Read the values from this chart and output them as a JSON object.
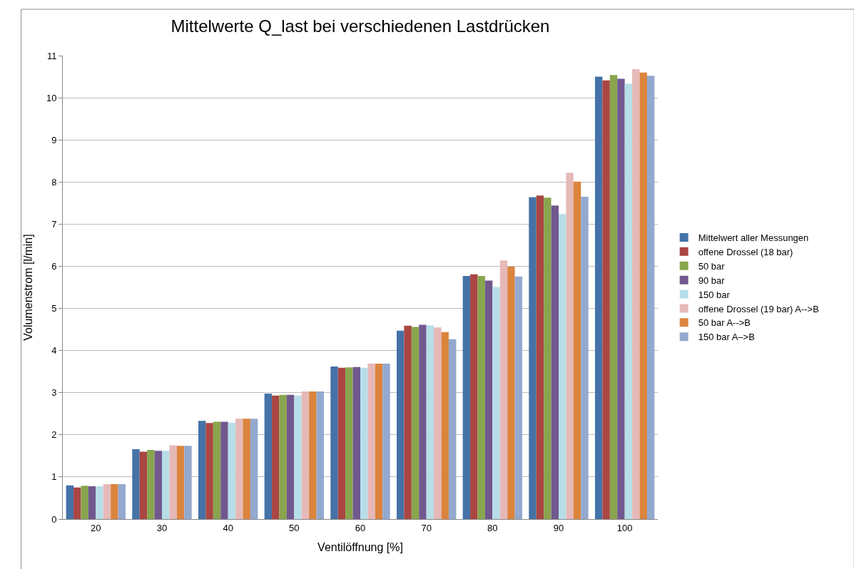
{
  "chart_data": {
    "type": "bar",
    "title": "Mittelwerte Q_last bei verschiedenen Lastdrücken",
    "xlabel": "Ventilöffnung [%]",
    "ylabel": "Volumenstrom [l/min]",
    "categories": [
      "20",
      "30",
      "40",
      "50",
      "60",
      "70",
      "80",
      "90",
      "100"
    ],
    "series": [
      {
        "name": "Mittelwert aller Messungen",
        "color": "#4572a7",
        "values": [
          0.8,
          1.66,
          2.33,
          2.98,
          3.62,
          4.47,
          5.77,
          7.64,
          10.5
        ]
      },
      {
        "name": "offene Drossel (18 bar)",
        "color": "#aa4643",
        "values": [
          0.75,
          1.6,
          2.28,
          2.93,
          3.59,
          4.59,
          5.81,
          7.68,
          10.41
        ]
      },
      {
        "name": "50 bar",
        "color": "#89a54e",
        "values": [
          0.79,
          1.64,
          2.31,
          2.95,
          3.6,
          4.56,
          5.77,
          7.63,
          10.54
        ]
      },
      {
        "name": "90 bar",
        "color": "#71588f",
        "values": [
          0.78,
          1.62,
          2.31,
          2.95,
          3.61,
          4.61,
          5.66,
          7.44,
          10.45
        ]
      },
      {
        "name": "150 bar",
        "color": "#b7dee8",
        "values": [
          0.78,
          1.62,
          2.29,
          2.93,
          3.59,
          4.6,
          5.51,
          7.24,
          10.33
        ]
      },
      {
        "name": "offene Drossel (19 bar) A-->B",
        "color": "#e6b9b8",
        "values": [
          0.83,
          1.75,
          2.38,
          3.03,
          3.69,
          4.55,
          6.14,
          8.22,
          10.68
        ]
      },
      {
        "name": "50 bar A-->B",
        "color": "#db843d",
        "values": [
          0.83,
          1.74,
          2.38,
          3.03,
          3.69,
          4.44,
          5.99,
          8.01,
          10.6
        ]
      },
      {
        "name": "150 bar A–>B",
        "color": "#93a9cf",
        "values": [
          0.83,
          1.74,
          2.38,
          3.03,
          3.69,
          4.27,
          5.76,
          7.65,
          10.52
        ]
      }
    ],
    "ylim": [
      0,
      11
    ],
    "yticks": [
      0,
      1,
      2,
      3,
      4,
      5,
      6,
      7,
      8,
      9,
      10,
      11
    ],
    "grid": "y",
    "legend": "right"
  }
}
